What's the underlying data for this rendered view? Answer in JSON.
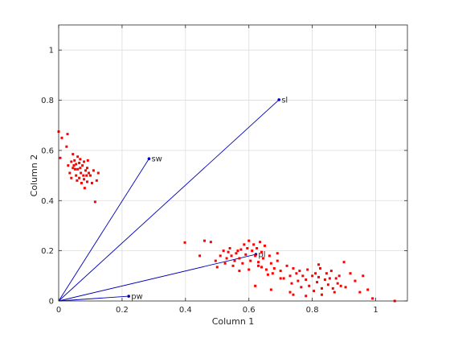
{
  "chart_data": {
    "type": "scatter",
    "xlabel": "Column 1",
    "ylabel": "Column 2",
    "xlim": [
      0,
      1.1
    ],
    "ylim": [
      0,
      1.1
    ],
    "xticks": [
      0,
      0.2,
      0.4,
      0.6,
      0.8,
      1
    ],
    "yticks": [
      0,
      0.2,
      0.4,
      0.6,
      0.8,
      1
    ],
    "xtick_labels": [
      "0",
      "0.2",
      "0.4",
      "0.6",
      "0.8",
      "1"
    ],
    "ytick_labels": [
      "0",
      "0.2",
      "0.4",
      "0.6",
      "0.8",
      "1"
    ],
    "grid": true,
    "colors": {
      "points": "#ff0000",
      "vectors": "#0000bb",
      "grid": "#dddddd",
      "axes": "#262626"
    },
    "vectors": [
      {
        "label": "sl",
        "x": 0.695,
        "y": 0.802
      },
      {
        "label": "sw",
        "x": 0.285,
        "y": 0.567
      },
      {
        "label": "pl",
        "x": 0.622,
        "y": 0.186
      },
      {
        "label": "pw",
        "x": 0.221,
        "y": 0.019
      }
    ],
    "points": [
      [
        0.0,
        0.675
      ],
      [
        0.005,
        0.57
      ],
      [
        0.01,
        0.65
      ],
      [
        0.025,
        0.615
      ],
      [
        0.028,
        0.665
      ],
      [
        0.03,
        0.54
      ],
      [
        0.035,
        0.51
      ],
      [
        0.04,
        0.555
      ],
      [
        0.045,
        0.585
      ],
      [
        0.048,
        0.54
      ],
      [
        0.05,
        0.56
      ],
      [
        0.055,
        0.5
      ],
      [
        0.055,
        0.545
      ],
      [
        0.06,
        0.575
      ],
      [
        0.06,
        0.525
      ],
      [
        0.065,
        0.55
      ],
      [
        0.065,
        0.49
      ],
      [
        0.068,
        0.565
      ],
      [
        0.07,
        0.51
      ],
      [
        0.072,
        0.47
      ],
      [
        0.075,
        0.54
      ],
      [
        0.078,
        0.5
      ],
      [
        0.08,
        0.555
      ],
      [
        0.08,
        0.485
      ],
      [
        0.082,
        0.45
      ],
      [
        0.085,
        0.52
      ],
      [
        0.088,
        0.5
      ],
      [
        0.09,
        0.475
      ],
      [
        0.092,
        0.56
      ],
      [
        0.095,
        0.51
      ],
      [
        0.1,
        0.5
      ],
      [
        0.105,
        0.47
      ],
      [
        0.11,
        0.52
      ],
      [
        0.115,
        0.395
      ],
      [
        0.12,
        0.48
      ],
      [
        0.125,
        0.51
      ],
      [
        0.04,
        0.49
      ],
      [
        0.045,
        0.53
      ],
      [
        0.052,
        0.525
      ],
      [
        0.068,
        0.53
      ],
      [
        0.058,
        0.48
      ],
      [
        0.09,
        0.53
      ],
      [
        0.398,
        0.233
      ],
      [
        0.445,
        0.18
      ],
      [
        0.46,
        0.24
      ],
      [
        0.48,
        0.235
      ],
      [
        0.495,
        0.16
      ],
      [
        0.5,
        0.135
      ],
      [
        0.51,
        0.18
      ],
      [
        0.52,
        0.2
      ],
      [
        0.525,
        0.15
      ],
      [
        0.53,
        0.17
      ],
      [
        0.535,
        0.195
      ],
      [
        0.54,
        0.21
      ],
      [
        0.545,
        0.18
      ],
      [
        0.55,
        0.14
      ],
      [
        0.555,
        0.16
      ],
      [
        0.56,
        0.19
      ],
      [
        0.565,
        0.2
      ],
      [
        0.57,
        0.17
      ],
      [
        0.575,
        0.205
      ],
      [
        0.58,
        0.15
      ],
      [
        0.585,
        0.225
      ],
      [
        0.59,
        0.185
      ],
      [
        0.595,
        0.21
      ],
      [
        0.6,
        0.24
      ],
      [
        0.605,
        0.16
      ],
      [
        0.61,
        0.2
      ],
      [
        0.615,
        0.225
      ],
      [
        0.62,
        0.18
      ],
      [
        0.625,
        0.21
      ],
      [
        0.63,
        0.14
      ],
      [
        0.635,
        0.235
      ],
      [
        0.64,
        0.195
      ],
      [
        0.645,
        0.17
      ],
      [
        0.65,
        0.22
      ],
      [
        0.655,
        0.125
      ],
      [
        0.66,
        0.105
      ],
      [
        0.665,
        0.18
      ],
      [
        0.67,
        0.15
      ],
      [
        0.675,
        0.11
      ],
      [
        0.68,
        0.13
      ],
      [
        0.69,
        0.16
      ],
      [
        0.7,
        0.12
      ],
      [
        0.71,
        0.09
      ],
      [
        0.72,
        0.14
      ],
      [
        0.73,
        0.1
      ],
      [
        0.735,
        0.07
      ],
      [
        0.74,
        0.13
      ],
      [
        0.75,
        0.11
      ],
      [
        0.755,
        0.08
      ],
      [
        0.76,
        0.12
      ],
      [
        0.765,
        0.055
      ],
      [
        0.77,
        0.1
      ],
      [
        0.78,
        0.085
      ],
      [
        0.785,
        0.125
      ],
      [
        0.79,
        0.06
      ],
      [
        0.8,
        0.1
      ],
      [
        0.805,
        0.04
      ],
      [
        0.81,
        0.11
      ],
      [
        0.815,
        0.075
      ],
      [
        0.82,
        0.095
      ],
      [
        0.825,
        0.13
      ],
      [
        0.83,
        0.05
      ],
      [
        0.84,
        0.085
      ],
      [
        0.845,
        0.11
      ],
      [
        0.85,
        0.065
      ],
      [
        0.855,
        0.09
      ],
      [
        0.86,
        0.12
      ],
      [
        0.865,
        0.05
      ],
      [
        0.87,
        0.035
      ],
      [
        0.88,
        0.07
      ],
      [
        0.885,
        0.1
      ],
      [
        0.89,
        0.06
      ],
      [
        0.9,
        0.155
      ],
      [
        0.905,
        0.055
      ],
      [
        0.92,
        0.11
      ],
      [
        0.935,
        0.08
      ],
      [
        0.96,
        0.1
      ],
      [
        0.975,
        0.045
      ],
      [
        0.99,
        0.01
      ],
      [
        1.06,
        0.0
      ],
      [
        0.73,
        0.035
      ],
      [
        0.78,
        0.02
      ],
      [
        0.67,
        0.045
      ],
      [
        0.6,
        0.125
      ],
      [
        0.62,
        0.06
      ],
      [
        0.57,
        0.12
      ],
      [
        0.64,
        0.135
      ],
      [
        0.7,
        0.09
      ],
      [
        0.74,
        0.025
      ],
      [
        0.83,
        0.025
      ],
      [
        0.875,
        0.09
      ],
      [
        0.95,
        0.035
      ],
      [
        0.69,
        0.19
      ],
      [
        0.82,
        0.145
      ],
      [
        0.63,
        0.155
      ]
    ]
  }
}
